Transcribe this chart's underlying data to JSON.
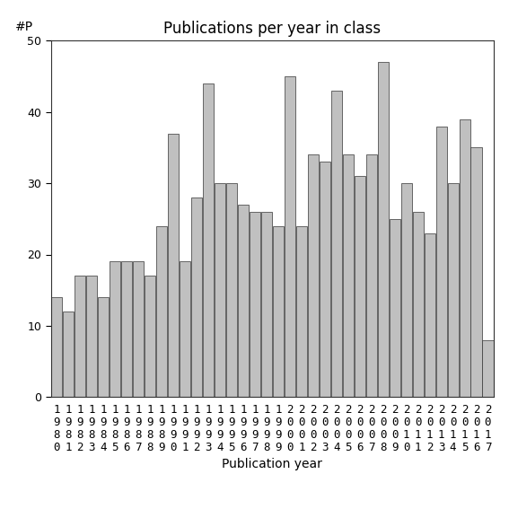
{
  "title": "Publications per year in class",
  "xlabel": "Publication year",
  "ylabel": "#P",
  "years": [
    1980,
    1981,
    1982,
    1983,
    1984,
    1985,
    1986,
    1987,
    1988,
    1989,
    1990,
    1991,
    1992,
    1993,
    1994,
    1995,
    1996,
    1997,
    1998,
    1999,
    2000,
    2001,
    2002,
    2003,
    2004,
    2005,
    2006,
    2007,
    2008,
    2009,
    2010,
    2011,
    2012,
    2013,
    2014,
    2015,
    2016,
    2017
  ],
  "values": [
    14,
    12,
    17,
    17,
    14,
    19,
    19,
    19,
    17,
    24,
    37,
    19,
    28,
    44,
    30,
    30,
    27,
    26,
    26,
    24,
    45,
    24,
    34,
    33,
    43,
    34,
    31,
    34,
    47,
    25,
    30,
    26,
    23,
    38,
    30,
    39,
    35,
    8
  ],
  "bar_color": "#c0c0c0",
  "bar_edge_color": "#333333",
  "ylim": [
    0,
    50
  ],
  "yticks": [
    0,
    10,
    20,
    30,
    40,
    50
  ],
  "background_color": "#ffffff",
  "title_fontsize": 12,
  "axis_fontsize": 10,
  "tick_fontsize": 9
}
